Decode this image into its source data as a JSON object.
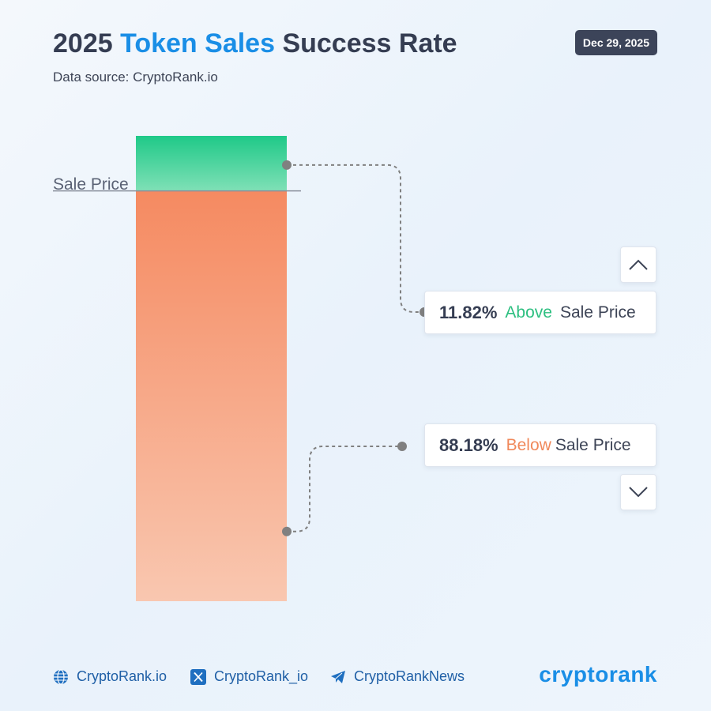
{
  "header": {
    "title_prefix": "2025",
    "title_accent": "Token Sales",
    "title_suffix": "Success Rate",
    "subtitle": "Data source: CryptoRank.io",
    "date": "Dec 29, 2025"
  },
  "chart_data": {
    "type": "bar",
    "stacked": true,
    "reference_line_label": "Sale Price",
    "series": [
      {
        "name": "Above",
        "value": 11.82,
        "unit": "%",
        "label": "11.82%",
        "suffix": "Sale Price",
        "color": "#2dc98a"
      },
      {
        "name": "Below",
        "value": 88.18,
        "unit": "%",
        "label": "88.18%",
        "suffix": "Sale Price",
        "color": "#f58a61"
      }
    ],
    "colors": {
      "above_top": "#1fc988",
      "above_bottom": "#7fe0b6",
      "below_top": "#f58a61",
      "below_bottom": "#f9c7b0",
      "connector": "#808080"
    }
  },
  "controls": {
    "up_icon": "chevron-up-icon",
    "down_icon": "chevron-down-icon"
  },
  "footer": {
    "links": [
      {
        "icon": "globe-icon",
        "label": "CryptoRank.io"
      },
      {
        "icon": "x-icon",
        "label": "CryptoRank_io"
      },
      {
        "icon": "telegram-icon",
        "label": "CryptoRankNews"
      }
    ],
    "logo_text": "cryptorank"
  }
}
